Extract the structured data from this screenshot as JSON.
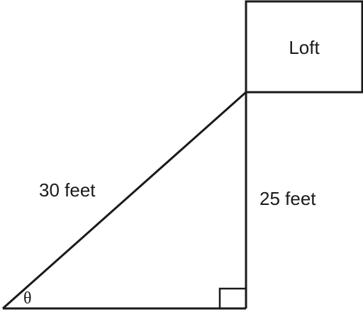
{
  "diagram": {
    "loft_label": "Loft",
    "hypotenuse_label": "30 feet",
    "vertical_label": "25 feet",
    "angle_label": "θ"
  }
}
